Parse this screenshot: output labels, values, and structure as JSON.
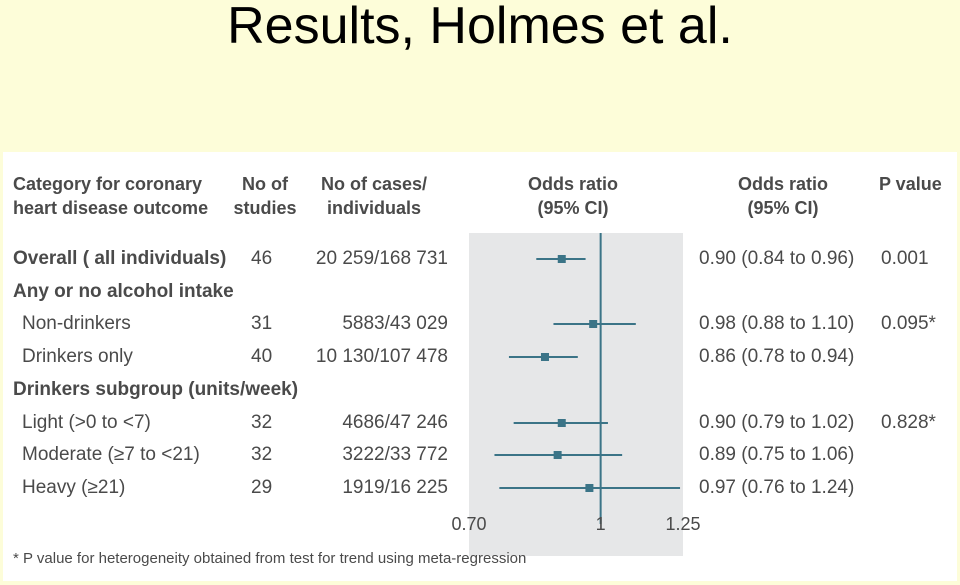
{
  "slide": {
    "title": "Results, Holmes et al."
  },
  "colors": {
    "accent": "#3b7487",
    "background": "#fdfdd9",
    "panel": "#ffffff",
    "plot_band": "#e6e7e8",
    "text": "#4a4a4a"
  },
  "headers": {
    "category": "Category for coronary\nheart disease outcome",
    "studies": "No of\nstudies",
    "cases": "No of cases/\nindividuals",
    "or_plot": "Odds ratio\n(95% CI)",
    "or_text": "Odds ratio\n(95% CI)",
    "pvalue": "P value"
  },
  "rows": [
    {
      "label": "Overall ( all individuals)",
      "studies": "46",
      "cases": "20 259/168 731",
      "or_text": "0.90 (0.84 to 0.96)",
      "pvalue": "0.001",
      "bold": true
    },
    {
      "label": "Any or no alcohol intake",
      "studies": "",
      "cases": "",
      "or_text": "",
      "pvalue": "",
      "bold": true
    },
    {
      "label": "Non-drinkers",
      "studies": "31",
      "cases": "5883/43 029",
      "or_text": "0.98 (0.88 to 1.10)",
      "pvalue": "0.095*",
      "bold": false
    },
    {
      "label": "Drinkers only",
      "studies": "40",
      "cases": "10 130/107 478",
      "or_text": "0.86 (0.78 to 0.94)",
      "pvalue": "",
      "bold": false
    },
    {
      "label": "Drinkers subgroup (units/week)",
      "studies": "",
      "cases": "",
      "or_text": "",
      "pvalue": "",
      "bold": true
    },
    {
      "label": "Light (>0 to <7)",
      "studies": "32",
      "cases": "4686/47 246",
      "or_text": "0.90 (0.79 to 1.02)",
      "pvalue": "0.828*",
      "bold": false
    },
    {
      "label": "Moderate (≥7 to <21)",
      "studies": "32",
      "cases": "3222/33 772",
      "or_text": "0.89 (0.75 to 1.06)",
      "pvalue": "",
      "bold": false
    },
    {
      "label": "Heavy (≥21)",
      "studies": "29",
      "cases": "1919/16 225",
      "or_text": "0.97 (0.76 to 1.24)",
      "pvalue": "",
      "bold": false
    }
  ],
  "footnote": "* P value for heterogeneity obtained from test for trend using meta-regression",
  "chart_data": {
    "type": "forest",
    "xscale": "log",
    "xlim": [
      0.7,
      1.25
    ],
    "xticks": [
      "0.70",
      "1",
      "1.25"
    ],
    "reference_line": 1,
    "series": [
      {
        "category": "Overall ( all individuals)",
        "estimate": 0.9,
        "lower": 0.84,
        "upper": 0.96
      },
      {
        "category": "Non-drinkers",
        "estimate": 0.98,
        "lower": 0.88,
        "upper": 1.1
      },
      {
        "category": "Drinkers only",
        "estimate": 0.86,
        "lower": 0.78,
        "upper": 0.94
      },
      {
        "category": "Light (>0 to <7)",
        "estimate": 0.9,
        "lower": 0.79,
        "upper": 1.02
      },
      {
        "category": "Moderate (≥7 to <21)",
        "estimate": 0.89,
        "lower": 0.75,
        "upper": 1.06
      },
      {
        "category": "Heavy (≥21)",
        "estimate": 0.97,
        "lower": 0.76,
        "upper": 1.24
      }
    ]
  }
}
